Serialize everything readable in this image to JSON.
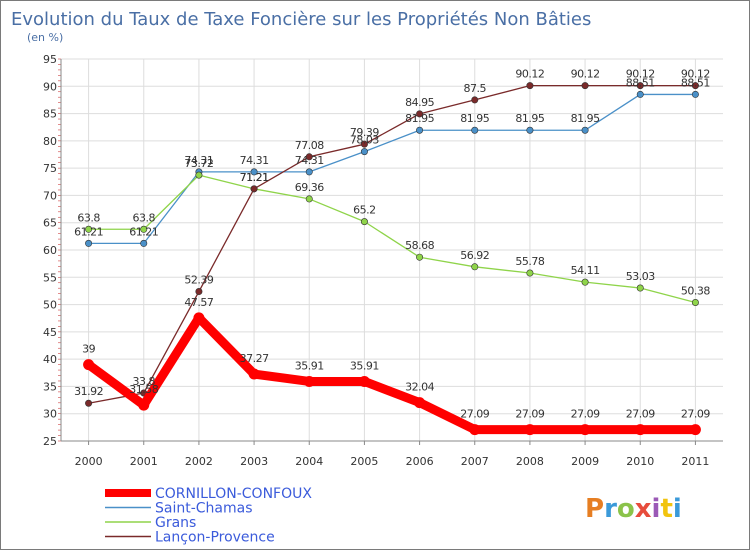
{
  "header": {
    "title": "Evolution du Taux de Taxe Foncière sur les Propriétés Non Bâties",
    "subtitle": "(en %)"
  },
  "logo": {
    "text": "Proxiti",
    "colors": [
      "#e67e22",
      "#3b9ad9",
      "#8bc34a",
      "#e74c3c",
      "#9b59b6",
      "#f1c40f",
      "#3b9ad9"
    ]
  },
  "chart_data": {
    "type": "line",
    "title": "Evolution du Taux de Taxe Foncière sur les Propriétés Non Bâties",
    "ylabel": "(en %)",
    "xlabel": "",
    "ylim": [
      25,
      95
    ],
    "yticks": [
      25,
      30,
      35,
      40,
      45,
      50,
      55,
      60,
      65,
      70,
      75,
      80,
      85,
      90,
      95
    ],
    "categories": [
      "2000",
      "2001",
      "2002",
      "2003",
      "2004",
      "2005",
      "2006",
      "2007",
      "2008",
      "2009",
      "2010",
      "2011"
    ],
    "grid": true,
    "legend": "bottom-left",
    "series": [
      {
        "name": "CORNILLON-CONFOUX",
        "color": "#ff0000",
        "values": [
          39,
          31.58,
          47.57,
          37.27,
          35.91,
          35.91,
          32.04,
          27.09,
          27.09,
          27.09,
          27.09,
          27.09
        ],
        "labels": [
          "39",
          "31.58",
          "47.57",
          "37.27",
          "35.91",
          "35.91",
          "32.04",
          "27.09",
          "27.09",
          "27.09",
          "27.09",
          "27.09"
        ]
      },
      {
        "name": "Saint-Chamas",
        "color": "#4a90c8",
        "values": [
          61.21,
          61.21,
          74.31,
          74.31,
          74.31,
          78.03,
          81.95,
          81.95,
          81.95,
          81.95,
          88.51,
          88.51
        ],
        "labels": [
          "61.21",
          "61.21",
          "74.31",
          "74.31",
          "74.31",
          "78.03",
          "81.95",
          "81.95",
          "81.95",
          "81.95",
          "88.51",
          "88.51"
        ]
      },
      {
        "name": "Grans",
        "color": "#8fd44a",
        "values": [
          63.8,
          63.8,
          73.72,
          71.21,
          69.36,
          65.2,
          58.68,
          56.92,
          55.78,
          54.11,
          53.03,
          50.38
        ],
        "labels": [
          "63.8",
          "63.8",
          "73.72",
          "71.21",
          "69.36",
          "65.2",
          "58.68",
          "56.92",
          "55.78",
          "54.11",
          "53.03",
          "50.38"
        ]
      },
      {
        "name": "Lançon-Provence",
        "color": "#7a2a2a",
        "values": [
          31.92,
          33.8,
          52.39,
          71.21,
          77.08,
          79.39,
          84.95,
          87.5,
          90.12,
          90.12,
          90.12,
          90.12
        ],
        "labels": [
          "31.92",
          "33.8",
          "52.39",
          "71.21",
          "77.08",
          "79.39",
          "84.95",
          "87.5",
          "90.12",
          "90.12",
          "90.12",
          "90.12"
        ]
      }
    ]
  }
}
